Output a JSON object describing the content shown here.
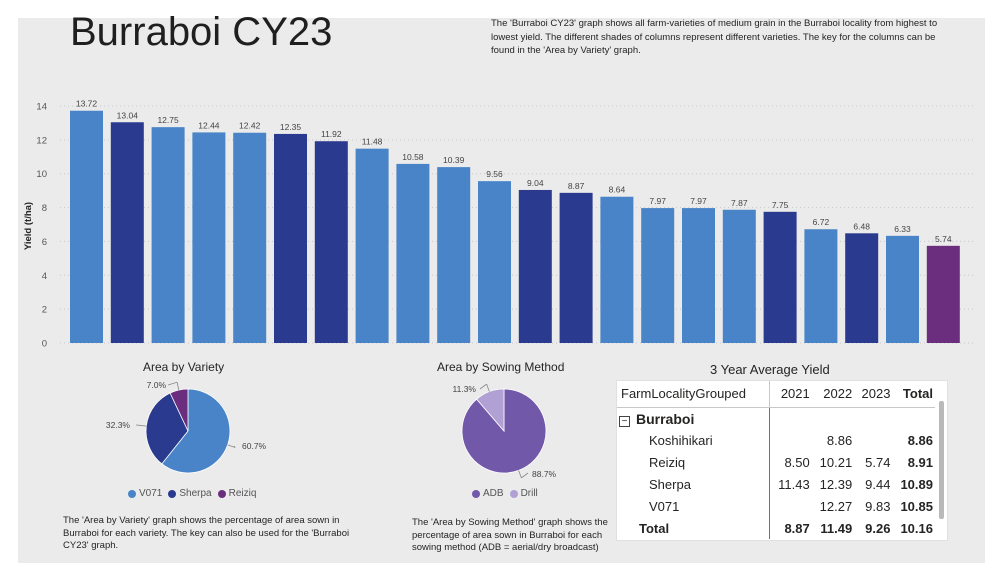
{
  "title": "Burraboi CY23",
  "description": "The 'Burraboi CY23' graph shows all farm-varieties of medium grain in the Burraboi locality from highest to lowest yield. The different shades of columns represent different varieties. The key for the columns can be found in the 'Area by Variety' graph.",
  "colors": {
    "V071": "#4a84c8",
    "Sherpa": "#2a3a8f",
    "Reiziq": "#6b2d7e",
    "ADB": "#7258a8",
    "Drill": "#b0a0d4"
  },
  "chart_data": [
    {
      "type": "bar",
      "title": "Burraboi CY23",
      "ylabel": "Yield (t/ha)",
      "xlabel": "",
      "ylim": [
        0,
        14
      ],
      "yticks": [
        0,
        2,
        4,
        6,
        8,
        10,
        12,
        14
      ],
      "grid": true,
      "values": [
        13.72,
        13.04,
        12.75,
        12.44,
        12.42,
        12.35,
        11.92,
        11.48,
        10.58,
        10.39,
        9.56,
        9.04,
        8.87,
        8.64,
        7.97,
        7.97,
        7.87,
        7.75,
        6.72,
        6.48,
        6.33,
        5.74
      ],
      "labels": [
        "13.72",
        "13.04",
        "12.75",
        "12.44",
        "12.42",
        "12.35",
        "11.92",
        "11.48",
        "10.58",
        "10.39",
        "9.56",
        "9.04",
        "8.87",
        "8.64",
        "7.97",
        "7.97",
        "7.87",
        "7.75",
        "6.72",
        "6.48",
        "6.33",
        "5.74"
      ],
      "varieties": [
        "V071",
        "Sherpa",
        "V071",
        "V071",
        "V071",
        "Sherpa",
        "Sherpa",
        "V071",
        "V071",
        "V071",
        "V071",
        "Sherpa",
        "Sherpa",
        "V071",
        "V071",
        "V071",
        "V071",
        "Sherpa",
        "V071",
        "Sherpa",
        "V071",
        "Reiziq"
      ]
    },
    {
      "type": "pie",
      "title": "Area by Variety",
      "categories": [
        "V071",
        "Sherpa",
        "Reiziq"
      ],
      "values": [
        60.7,
        32.3,
        7.0
      ],
      "labels": [
        "60.7%",
        "32.3%",
        "7.0%"
      ],
      "legend": "bottom"
    },
    {
      "type": "pie",
      "title": "Area by Sowing Method",
      "categories": [
        "ADB",
        "Drill"
      ],
      "values": [
        88.7,
        11.3
      ],
      "labels": [
        "88.7%",
        "11.3%"
      ],
      "legend": "bottom"
    },
    {
      "type": "table",
      "title": "3 Year Average Yield",
      "header": [
        "FarmLocalityGrouped",
        "2021",
        "2022",
        "2023",
        "Total"
      ],
      "group": "Burraboi",
      "collapse_glyph": "−",
      "rows": [
        [
          "Koshihikari",
          "",
          "8.86",
          "",
          "8.86"
        ],
        [
          "Reiziq",
          "8.50",
          "10.21",
          "5.74",
          "8.91"
        ],
        [
          "Sherpa",
          "11.43",
          "12.39",
          "9.44",
          "10.89"
        ],
        [
          "V071",
          "",
          "12.27",
          "9.83",
          "10.85"
        ]
      ],
      "total": [
        "Total",
        "8.87",
        "11.49",
        "9.26",
        "10.16"
      ]
    }
  ],
  "notes": {
    "variety": "The 'Area by Variety' graph shows the percentage of area sown in Burraboi for each variety. The key can also be used for the 'Burraboi CY23' graph.",
    "sowing": "The 'Area by Sowing Method' graph shows the percentage of area sown in Burraboi for each sowing method (ADB = aerial/dry broadcast)"
  }
}
